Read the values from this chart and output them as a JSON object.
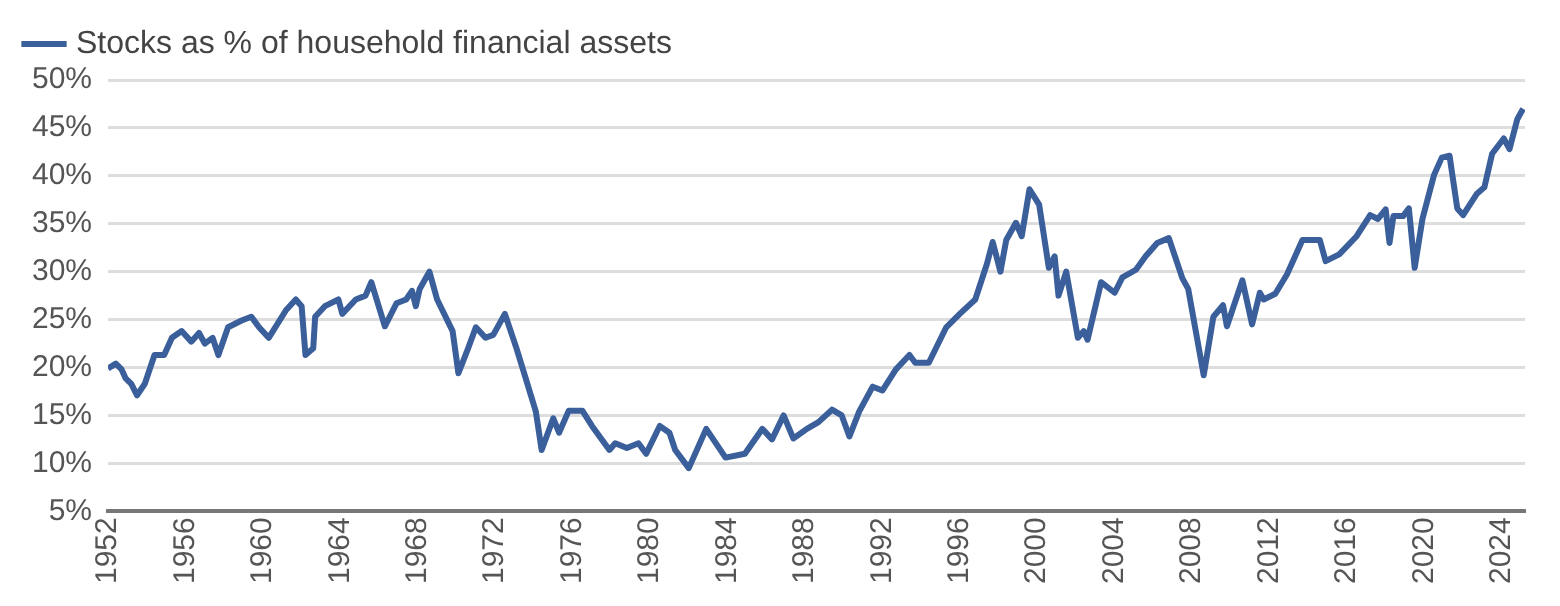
{
  "chart_data": {
    "type": "line",
    "x": [
      1952.0,
      1952.4,
      1952.7,
      1952.9,
      1953.2,
      1953.5,
      1953.9,
      1954.4,
      1954.9,
      1955.3,
      1955.8,
      1956.3,
      1956.7,
      1957.0,
      1957.4,
      1957.7,
      1958.2,
      1958.9,
      1959.4,
      1959.8,
      1960.3,
      1961.2,
      1961.7,
      1962.0,
      1962.2,
      1962.6,
      1962.7,
      1963.2,
      1963.9,
      1964.1,
      1964.8,
      1965.3,
      1965.6,
      1966.3,
      1966.9,
      1967.4,
      1967.7,
      1967.9,
      1968.1,
      1968.6,
      1969.0,
      1969.8,
      1970.1,
      1970.6,
      1971.0,
      1971.5,
      1971.9,
      1972.5,
      1973.1,
      1973.6,
      1974.1,
      1974.4,
      1975.0,
      1975.3,
      1975.8,
      1976.5,
      1977.0,
      1977.9,
      1978.2,
      1978.8,
      1979.4,
      1979.8,
      1980.5,
      1981.0,
      1981.3,
      1982.0,
      1982.9,
      1983.9,
      1984.9,
      1985.8,
      1986.3,
      1986.9,
      1987.4,
      1988.1,
      1988.7,
      1989.4,
      1989.9,
      1990.3,
      1990.8,
      1991.5,
      1992.0,
      1992.7,
      1993.4,
      1993.7,
      1994.4,
      1995.3,
      1996.0,
      1996.8,
      1997.4,
      1997.7,
      1998.1,
      1998.4,
      1998.9,
      1999.2,
      1999.6,
      2000.1,
      2000.6,
      2000.9,
      2001.1,
      2001.5,
      2002.1,
      2002.4,
      2002.6,
      2003.3,
      2004.0,
      2004.4,
      2005.1,
      2005.6,
      2006.2,
      2006.8,
      2007.5,
      2007.8,
      2008.6,
      2009.1,
      2009.6,
      2009.8,
      2010.6,
      2011.1,
      2011.5,
      2011.7,
      2012.3,
      2012.9,
      2013.7,
      2014.6,
      2014.9,
      2015.6,
      2016.5,
      2017.2,
      2017.6,
      2018.0,
      2018.2,
      2018.4,
      2018.9,
      2019.2,
      2019.5,
      2019.9,
      2020.5,
      2020.9,
      2021.3,
      2021.7,
      2022.0,
      2022.7,
      2023.1,
      2023.5,
      2024.1,
      2024.4,
      2024.8,
      2025.1
    ],
    "series": [
      {
        "name": "Stocks as % of household financial assets",
        "color": "#3a5f9b",
        "values": [
          19.9,
          20.4,
          19.8,
          18.9,
          18.3,
          17.1,
          18.3,
          21.3,
          21.3,
          23.1,
          23.8,
          22.7,
          23.6,
          22.5,
          23.1,
          21.3,
          24.2,
          24.9,
          25.3,
          24.2,
          23.1,
          26.0,
          27.1,
          26.4,
          21.3,
          22.0,
          25.3,
          26.4,
          27.1,
          25.6,
          27.1,
          27.5,
          28.9,
          24.3,
          26.7,
          27.1,
          28.0,
          26.4,
          28.2,
          30.0,
          27.1,
          23.8,
          19.4,
          22.0,
          24.2,
          23.1,
          23.4,
          25.6,
          22.0,
          18.7,
          15.4,
          11.4,
          14.7,
          13.2,
          15.5,
          15.5,
          13.9,
          11.4,
          12.1,
          11.6,
          12.1,
          11.0,
          13.9,
          13.2,
          11.4,
          9.5,
          13.6,
          10.6,
          11.0,
          13.6,
          12.5,
          15.0,
          12.6,
          13.6,
          14.3,
          15.6,
          15.0,
          12.8,
          15.4,
          18.0,
          17.6,
          19.8,
          21.3,
          20.5,
          20.5,
          24.2,
          25.6,
          27.1,
          30.8,
          33.1,
          30.0,
          33.3,
          35.1,
          33.7,
          38.6,
          37.0,
          30.4,
          31.6,
          27.5,
          30.0,
          23.1,
          23.8,
          22.9,
          28.9,
          27.8,
          29.4,
          30.2,
          31.6,
          33.0,
          33.5,
          29.3,
          28.2,
          19.2,
          25.3,
          26.5,
          24.3,
          29.1,
          24.5,
          27.8,
          27.1,
          27.7,
          29.7,
          33.3,
          33.3,
          31.1,
          31.8,
          33.7,
          35.9,
          35.5,
          36.5,
          33.0,
          35.8,
          35.8,
          36.6,
          30.4,
          35.5,
          40.1,
          41.9,
          42.1,
          36.6,
          35.9,
          38.1,
          38.8,
          42.3,
          43.9,
          42.8,
          45.9,
          47.0
        ]
      }
    ],
    "xlim": [
      1952,
      2025.2
    ],
    "xticks": [
      1952,
      1956,
      1960,
      1964,
      1968,
      1972,
      1976,
      1980,
      1984,
      1988,
      1992,
      1996,
      2000,
      2004,
      2008,
      2012,
      2016,
      2020,
      2024
    ],
    "ylim": [
      5,
      50
    ],
    "yticks": [
      {
        "value": 5,
        "label": "5%"
      },
      {
        "value": 10,
        "label": "10%"
      },
      {
        "value": 15,
        "label": "15%"
      },
      {
        "value": 20,
        "label": "20%"
      },
      {
        "value": 25,
        "label": "25%"
      },
      {
        "value": 30,
        "label": "30%"
      },
      {
        "value": 35,
        "label": "35%"
      },
      {
        "value": 40,
        "label": "40%"
      },
      {
        "value": 45,
        "label": "45%"
      },
      {
        "value": 50,
        "label": "50%"
      }
    ],
    "grid": "y",
    "legend": "top left",
    "marker": "none",
    "line_style": "solid"
  }
}
